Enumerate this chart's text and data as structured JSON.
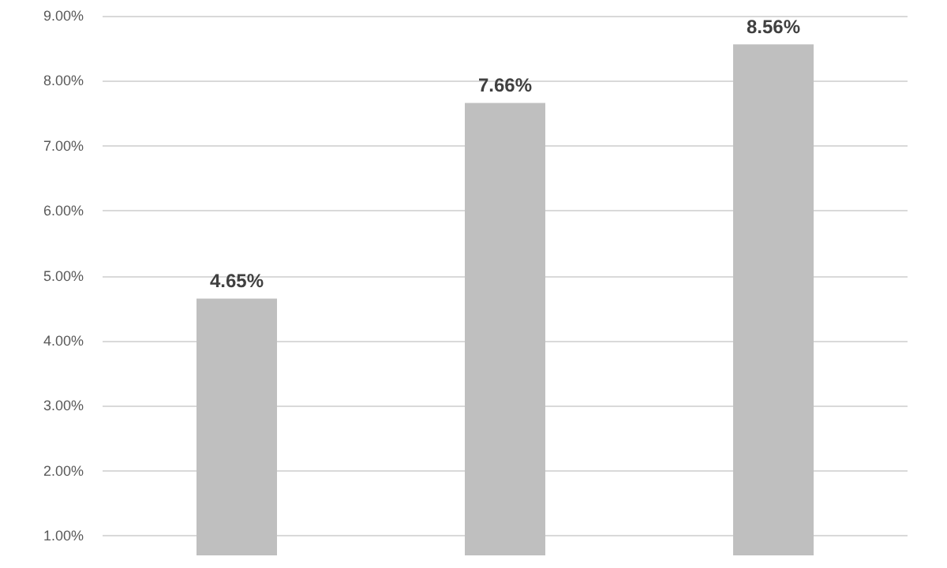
{
  "chart_data": {
    "type": "bar",
    "categories": [
      null,
      null,
      null
    ],
    "values": [
      4.65,
      7.66,
      8.56
    ],
    "value_labels": [
      "4.65%",
      "7.66%",
      "8.56%"
    ],
    "color": "#bfbfbf",
    "ylim": [
      0.7,
      9
    ],
    "yticks": [
      {
        "value": 1,
        "label": "1.00%"
      },
      {
        "value": 2,
        "label": "2.00%"
      },
      {
        "value": 3,
        "label": "3.00%"
      },
      {
        "value": 4,
        "label": "4.00%"
      },
      {
        "value": 5,
        "label": "5.00%"
      },
      {
        "value": 6,
        "label": "6.00%"
      },
      {
        "value": 7,
        "label": "7.00%"
      },
      {
        "value": 8,
        "label": "8.00%"
      },
      {
        "value": 9,
        "label": "9.00%"
      }
    ],
    "grid": "y"
  }
}
